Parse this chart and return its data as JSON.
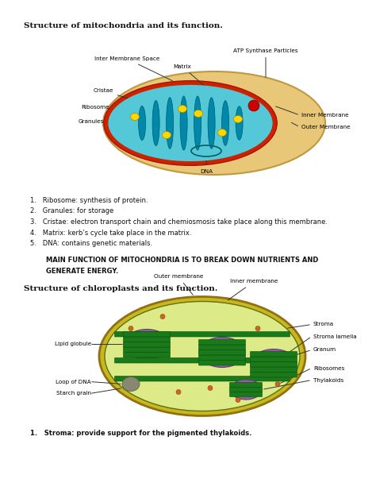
{
  "bg_color": "#ffffff",
  "title1": "Structure of mitochondria and its function.",
  "title2": "Structure of chloroplasts and its function.",
  "mito_points": [
    "Ribosome: synthesis of protein.",
    "Granules: for storage",
    "Cristae: electron transport chain and chemiosmosis take place along this membrane.",
    "Matrix: kerb’s cycle take place in the matrix.",
    "DNA: contains genetic materials."
  ],
  "mito_bold1": "MAIN FUNCTION OF MITOCHONDRIA IS TO BREAK DOWN NUTRIENTS AND",
  "mito_bold2": "GENERATE ENERGY.",
  "chloro_point": "Stroma: provide support for the pigmented thylakoids.",
  "mito_outer_color": "#E8C878",
  "mito_inner_border_color": "#CC2200",
  "mito_matrix_color": "#55C8D8",
  "mito_cristae_color": "#0088AA",
  "mito_granule_color": "#FFD700",
  "mito_reddot_color": "#CC0000",
  "cp_outer_color": "#C8B820",
  "cp_inner_color": "#DCEA88",
  "cp_grana_color": "#1A7A1A",
  "cp_thylakoid_color": "#9060A0",
  "cp_dot_color": "#CC6622"
}
